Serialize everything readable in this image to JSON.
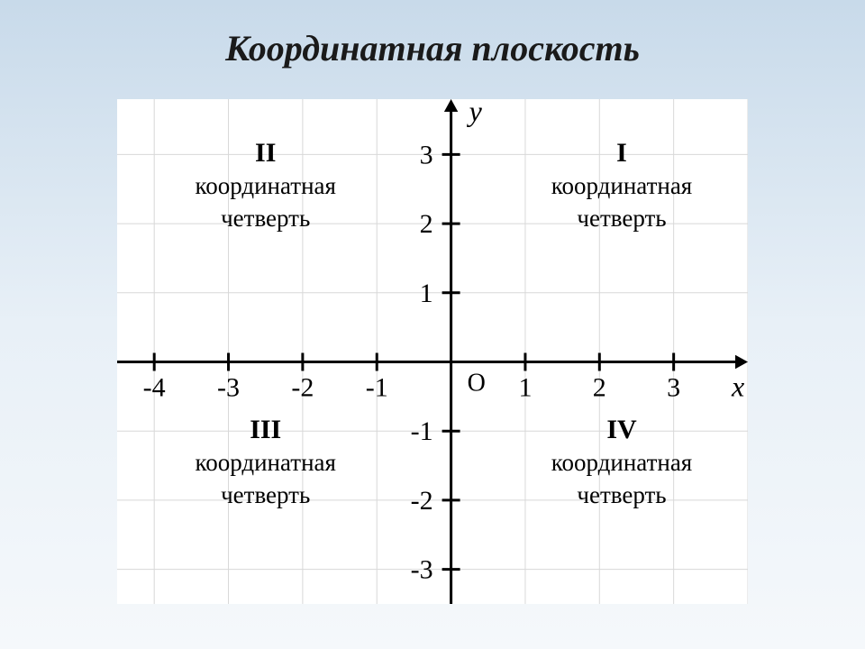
{
  "title": "Координатная плоскость",
  "title_fontsize": 40,
  "title_style": "italic bold",
  "chart": {
    "type": "coordinate-plane",
    "background_color": "#ffffff",
    "grid_color": "#d8d8d8",
    "grid_width": 1,
    "axis_color": "#000000",
    "axis_width": 3,
    "tick_length": 10,
    "tick_width": 3,
    "x": {
      "label": "x",
      "min": -4.5,
      "max": 4,
      "ticks": [
        -4,
        -3,
        -2,
        -1,
        1,
        2,
        3
      ],
      "tick_labels": [
        "-4",
        "-3",
        "-2",
        "-1",
        "1",
        "2",
        "3"
      ]
    },
    "y": {
      "label": "y",
      "min": -3.5,
      "max": 3.8,
      "ticks": [
        -3,
        -2,
        -1,
        1,
        2,
        3
      ],
      "tick_labels": [
        "-3",
        "-2",
        "-1",
        "1",
        "2",
        "3"
      ]
    },
    "origin_label": "O",
    "tick_label_fontsize": 30,
    "tick_label_color": "#000000",
    "axis_label_fontsize": 32,
    "axis_label_style": "italic",
    "origin_fontsize": 28,
    "arrow_size": 14
  },
  "quadrants": {
    "font_family": "Times New Roman",
    "roman_fontsize": 30,
    "text_fontsize": 27,
    "color": "#000000",
    "q1": {
      "roman": "I",
      "line1": "координатная",
      "line2": "четверть"
    },
    "q2": {
      "roman": "II",
      "line1": "координатная",
      "line2": "четверть"
    },
    "q3": {
      "roman": "III",
      "line1": "координатная",
      "line2": "четверть"
    },
    "q4": {
      "roman": "IV",
      "line1": "координатная",
      "line2": "четверть"
    }
  },
  "page_gradient": {
    "top": "#c8daea",
    "bottom": "#f5f8fb"
  }
}
